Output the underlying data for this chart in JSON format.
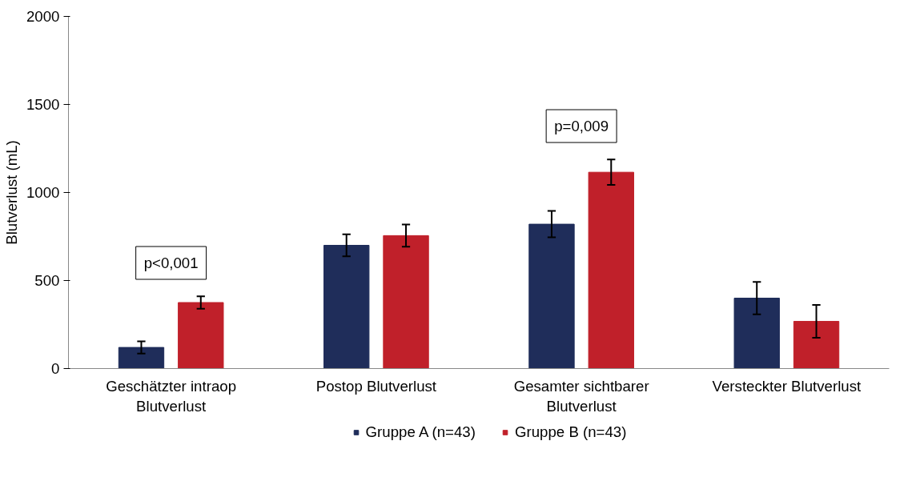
{
  "chart_data": {
    "type": "bar",
    "ylabel": "Blutverlust (mL)",
    "categories": [
      "Geschätzter intraop\nBlutverlust",
      "Postop Blutverlust",
      "Gesamter sichtbarer\nBlutverlust",
      "Versteckter Blutverlust"
    ],
    "series": [
      {
        "name": "Gruppe A (n=43)",
        "color": "#1f2d5a",
        "values": [
          120,
          700,
          820,
          400
        ],
        "errors": [
          35,
          63,
          75,
          92
        ]
      },
      {
        "name": "Gruppe B (n=43)",
        "color": "#c0202a",
        "values": [
          375,
          755,
          1115,
          268
        ],
        "errors": [
          35,
          63,
          72,
          93
        ]
      }
    ],
    "ylim": [
      0,
      2000
    ],
    "yticks": [
      0,
      500,
      1000,
      1500,
      2000
    ],
    "annotations": [
      "p<0,001",
      "p=0,009"
    ],
    "grid": false,
    "legend": "bottom"
  }
}
